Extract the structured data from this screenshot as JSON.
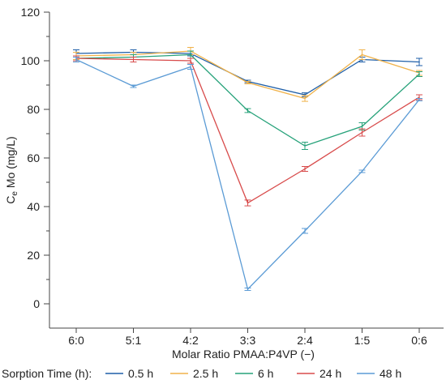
{
  "chart_data": {
    "type": "line",
    "title": "",
    "xlabel": "Molar Ratio PMAA:P4VP (−)",
    "ylabel_main": "C",
    "ylabel_sub": "e",
    "ylabel_rest": " Mo (mg/L)",
    "ylim": [
      -10,
      120
    ],
    "yticks": [
      0,
      20,
      40,
      60,
      80,
      100,
      120
    ],
    "categories": [
      "6:0",
      "5:1",
      "4:2",
      "3:3",
      "2:4",
      "1:5",
      "0:6"
    ],
    "grid": false,
    "legend_position": "bottom",
    "legend_title": "Sorption Time (h):",
    "series": [
      {
        "name": "0.5 h",
        "color": "#1f5fa8",
        "values": [
          103,
          103.5,
          103,
          91.5,
          86,
          100.5,
          99.5
        ],
        "errors": [
          1.5,
          1,
          1,
          0.5,
          0.8,
          1,
          1.5
        ]
      },
      {
        "name": "2.5 h",
        "color": "#f0b24a",
        "values": [
          102,
          102.5,
          104,
          91,
          84.5,
          102.5,
          95
        ],
        "errors": [
          1.5,
          1,
          1.5,
          0.5,
          1.2,
          2,
          1
        ]
      },
      {
        "name": "6 h",
        "color": "#27a27a",
        "values": [
          101,
          101.5,
          102.5,
          79.5,
          65,
          73,
          94.5
        ],
        "errors": [
          1,
          1,
          1.5,
          0.8,
          1.5,
          1.5,
          1
        ]
      },
      {
        "name": "24 h",
        "color": "#d84b4b",
        "values": [
          101,
          100.5,
          100,
          41.5,
          55.5,
          70.5,
          85
        ],
        "errors": [
          1,
          1,
          1,
          1.2,
          1,
          1.5,
          1
        ]
      },
      {
        "name": "48 h",
        "color": "#5b9bd5",
        "values": [
          100.5,
          89.5,
          97.5,
          6,
          30,
          54.5,
          84
        ],
        "errors": [
          1,
          0.5,
          1,
          0.5,
          1,
          0.5,
          0.5
        ]
      }
    ]
  }
}
